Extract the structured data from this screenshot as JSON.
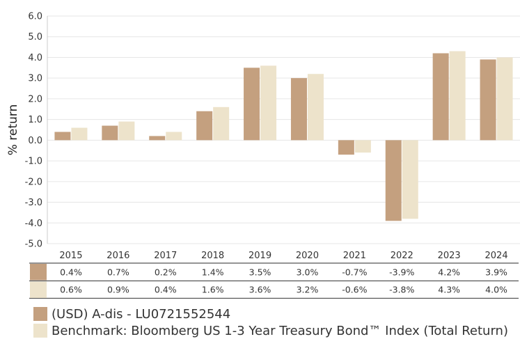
{
  "chart_data": {
    "type": "bar",
    "categories": [
      "2015",
      "2016",
      "2017",
      "2018",
      "2019",
      "2020",
      "2021",
      "2022",
      "2023",
      "2024"
    ],
    "series": [
      {
        "name": "(USD) A-dis - LU0721552544",
        "values": [
          0.4,
          0.7,
          0.2,
          1.4,
          3.5,
          3.0,
          -0.7,
          -3.9,
          4.2,
          3.9
        ],
        "color": "#c4a07f"
      },
      {
        "name": "Benchmark: Bloomberg US 1-3 Year Treasury Bond™ Index (Total Return)",
        "values": [
          0.6,
          0.9,
          0.4,
          1.6,
          3.6,
          3.2,
          -0.6,
          -3.8,
          4.3,
          4.0
        ],
        "color": "#ede3cb"
      }
    ],
    "ylabel": "% return",
    "ylim": [
      -5.0,
      6.0
    ],
    "yticks": [
      "6.0",
      "5.0",
      "4.0",
      "3.0",
      "2.0",
      "1.0",
      "0.0",
      "-1.0",
      "-2.0",
      "-3.0",
      "-4.0",
      "-5.0"
    ],
    "grid": true,
    "legend_position": "bottom",
    "table": {
      "rows": [
        [
          "0.4%",
          "0.7%",
          "0.2%",
          "1.4%",
          "3.5%",
          "3.0%",
          "-0.7%",
          "-3.9%",
          "4.2%",
          "3.9%"
        ],
        [
          "0.6%",
          "0.9%",
          "0.4%",
          "1.6%",
          "3.6%",
          "3.2%",
          "-0.6%",
          "-3.8%",
          "4.3%",
          "4.0%"
        ]
      ]
    }
  }
}
